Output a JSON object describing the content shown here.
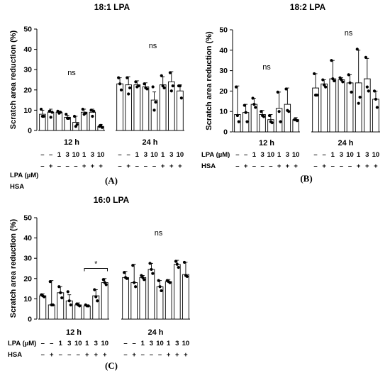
{
  "chart_data": [
    {
      "type": "bar",
      "panel_label": "(A)",
      "title": "18:1 LPA",
      "ylabel": "Scratch area reduction (%)",
      "ylim": [
        0,
        50
      ],
      "yticks": [
        "0",
        "10",
        "20",
        "30",
        "40",
        "50"
      ],
      "groups": [
        {
          "label": "12 h",
          "annotation": "ns"
        },
        {
          "label": "24 h",
          "annotation": "ns"
        }
      ],
      "row_labels": [
        "LPA (µM)",
        "HSA"
      ],
      "conditions_lpa": [
        "–",
        "–",
        "1",
        "3",
        "10",
        "1",
        "3",
        "10"
      ],
      "conditions_hsa": [
        "–",
        "+",
        "–",
        "–",
        "–",
        "+",
        "+",
        "+"
      ],
      "values": [
        [
          8,
          9,
          9,
          6.5,
          4,
          9,
          9,
          2
        ],
        [
          23,
          22.5,
          22.5,
          21.5,
          15,
          22.5,
          24,
          19.5
        ]
      ],
      "errors": [
        [
          2,
          1.5,
          0.5,
          1,
          3,
          1.5,
          1.5,
          1
        ],
        [
          3,
          4,
          2,
          2,
          4,
          4,
          5,
          3
        ]
      ],
      "points": [
        [
          [
            10.5,
            7,
            7
          ],
          [
            9.5,
            9,
            6.5
          ],
          [
            9.5,
            9,
            8.5
          ],
          [
            8,
            6,
            6
          ],
          [
            7,
            3,
            2
          ],
          [
            10.5,
            8.5,
            8
          ],
          [
            10,
            9.5,
            7
          ],
          [
            2,
            1.5,
            2.5
          ]
        ],
        [
          [
            26,
            20,
            23
          ],
          [
            26,
            21,
            18
          ],
          [
            24,
            22,
            21.5
          ],
          [
            23,
            20.5,
            21
          ],
          [
            21.5,
            14,
            10
          ],
          [
            27,
            21,
            22
          ],
          [
            28.5,
            22,
            19.5
          ],
          [
            22,
            16,
            22
          ]
        ]
      ]
    },
    {
      "type": "bar",
      "panel_label": "(B)",
      "title": "18:2 LPA",
      "ylabel": "Scratch area reduction (%)",
      "ylim": [
        0,
        50
      ],
      "yticks": [
        "0",
        "10",
        "20",
        "30",
        "40",
        "50"
      ],
      "groups": [
        {
          "label": "12 h",
          "annotation": "ns"
        },
        {
          "label": "24 h",
          "annotation": "ns"
        }
      ],
      "row_labels": [
        "LPA (µM)",
        "HSA"
      ],
      "conditions_lpa": [
        "–",
        "–",
        "1",
        "3",
        "10",
        "1",
        "3",
        "10"
      ],
      "conditions_hsa": [
        "–",
        "+",
        "–",
        "–",
        "–",
        "+",
        "+",
        "+"
      ],
      "values": [
        [
          8.5,
          9.5,
          13.5,
          8.5,
          6,
          11.5,
          13.5,
          6
        ],
        [
          21.5,
          23.5,
          26,
          25.5,
          24,
          24,
          26,
          16
        ]
      ],
      "errors": [
        [
          14,
          4,
          3,
          2,
          2.5,
          8,
          8,
          1
        ],
        [
          7,
          2,
          9,
          1,
          4,
          16,
          10,
          4
        ]
      ],
      "points": [
        [
          [
            22,
            5,
            8
          ],
          [
            13,
            5,
            9.5
          ],
          [
            16.5,
            12,
            13.5
          ],
          [
            10,
            7.5,
            8
          ],
          [
            8,
            4.5,
            5
          ],
          [
            19.5,
            5,
            10
          ],
          [
            21,
            10,
            10.5
          ],
          [
            6,
            5.5,
            6
          ]
        ],
        [
          [
            28.5,
            18,
            18
          ],
          [
            25.5,
            22,
            23
          ],
          [
            35,
            25,
            26
          ],
          [
            26.5,
            24.5,
            25.5
          ],
          [
            28,
            19.5,
            24
          ],
          [
            40.5,
            17,
            14
          ],
          [
            36.5,
            20,
            22
          ],
          [
            20,
            12,
            16
          ]
        ]
      ]
    },
    {
      "type": "bar",
      "panel_label": "(C)",
      "title": "16:0 LPA",
      "ylabel": "Scratch area reduction (%)",
      "ylim": [
        0,
        50
      ],
      "yticks": [
        "0",
        "10",
        "20",
        "30",
        "40",
        "50"
      ],
      "groups": [
        {
          "label": "12 h",
          "annotation": "*"
        },
        {
          "label": "24 h",
          "annotation": "ns"
        }
      ],
      "significance_bracket": {
        "group": "12 h",
        "from_bar": 6,
        "to_bar": 8,
        "label": "*"
      },
      "row_labels": [
        "LPA (µM)",
        "HSA"
      ],
      "conditions_lpa": [
        "–",
        "–",
        "1",
        "3",
        "10",
        "1",
        "3",
        "10"
      ],
      "conditions_hsa": [
        "–",
        "+",
        "–",
        "–",
        "–",
        "+",
        "+",
        "+"
      ],
      "values": [
        [
          11.5,
          7,
          13,
          9,
          7,
          6.5,
          11.5,
          18
        ],
        [
          20.5,
          18,
          20.5,
          24.5,
          16,
          18.5,
          27,
          22
        ]
      ],
      "errors": [
        [
          1,
          12,
          3,
          3,
          1,
          0.5,
          3,
          2
        ],
        [
          3,
          9,
          1,
          3,
          3,
          1,
          2,
          6
        ]
      ],
      "points": [
        [
          [
            12,
            11,
            11.5
          ],
          [
            18.5,
            7,
            7
          ],
          [
            16,
            10.5,
            13
          ],
          [
            13.5,
            7,
            9
          ],
          [
            7.5,
            6.5,
            7
          ],
          [
            7,
            6.5,
            6.5
          ],
          [
            14.5,
            9,
            11
          ],
          [
            19.5,
            17,
            18
          ]
        ],
        [
          [
            23,
            20,
            20.5
          ],
          [
            26.5,
            16,
            18
          ],
          [
            21.5,
            19.5,
            20.5
          ],
          [
            27.5,
            22.5,
            24.5
          ],
          [
            19,
            14,
            16
          ],
          [
            19,
            18,
            18.5
          ],
          [
            28.5,
            25.5,
            27
          ],
          [
            28,
            21,
            21.5
          ]
        ]
      ]
    }
  ]
}
